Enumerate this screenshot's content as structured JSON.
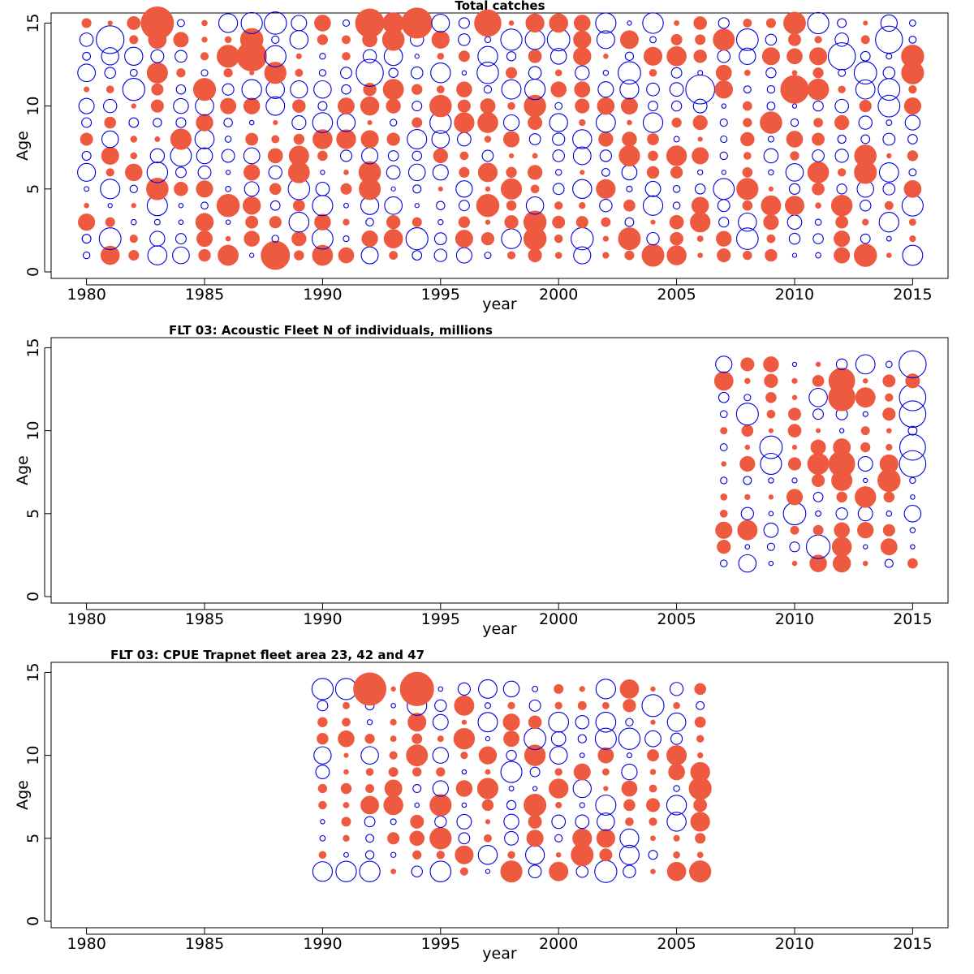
{
  "colors": {
    "positive": "#ee5a40",
    "negative": "#0000dd"
  },
  "chart_data": [
    {
      "type": "scatter",
      "subtype": "bubble-residuals",
      "title": "Total catches",
      "xlabel": "year",
      "ylabel": "Age",
      "xlim": [
        1978.5,
        2016.5
      ],
      "ylim": [
        0,
        16
      ],
      "xticks": [
        1980,
        1985,
        1990,
        1995,
        2000,
        2005,
        2010,
        2015
      ],
      "yticks": [
        0,
        5,
        10,
        15
      ],
      "years": [
        1980,
        2015
      ],
      "ages": [
        1,
        15
      ],
      "seed": 11,
      "overrides": [
        {
          "year": 1983,
          "age": 15,
          "v": 3.0
        },
        {
          "year": 1992,
          "age": 15,
          "v": 2.3
        },
        {
          "year": 1994,
          "age": 15,
          "v": 2.6
        },
        {
          "year": 1987,
          "age": 13,
          "v": 2.5
        },
        {
          "year": 1988,
          "age": 1,
          "v": 2.3
        },
        {
          "year": 1981,
          "age": 14,
          "v": -2.2
        },
        {
          "year": 2006,
          "age": 11,
          "v": -2.4
        },
        {
          "year": 2010,
          "age": 11,
          "v": 2.2
        },
        {
          "year": 2014,
          "age": 14,
          "v": -2.1
        },
        {
          "year": 1992,
          "age": 12,
          "v": -2.1
        },
        {
          "year": 2012,
          "age": 13,
          "v": -2.1
        },
        {
          "year": 1997,
          "age": 15,
          "v": 2.0
        }
      ]
    },
    {
      "type": "scatter",
      "subtype": "bubble-residuals",
      "title": "FLT 03: Acoustic Fleet   N of individuals, millions",
      "xlabel": "year",
      "ylabel": "Age",
      "xlim": [
        1978.5,
        2016.5
      ],
      "ylim": [
        0,
        16
      ],
      "xticks": [
        1980,
        1985,
        1990,
        1995,
        2000,
        2005,
        2010,
        2015
      ],
      "yticks": [
        0,
        5,
        10,
        15
      ],
      "years": [
        2007,
        2015
      ],
      "ages": [
        2,
        14
      ],
      "seed": 23,
      "overrides": [
        {
          "year": 2012,
          "age": 13,
          "v": 1.9
        },
        {
          "year": 2012,
          "age": 12,
          "v": 2.0
        },
        {
          "year": 2012,
          "age": 8,
          "v": 1.9
        },
        {
          "year": 2015,
          "age": 14,
          "v": -2.1
        },
        {
          "year": 2015,
          "age": 12,
          "v": -2.0
        },
        {
          "year": 2015,
          "age": 11,
          "v": -2.0
        },
        {
          "year": 2015,
          "age": 9,
          "v": -1.9
        },
        {
          "year": 2015,
          "age": 8,
          "v": -2.0
        },
        {
          "year": 2011,
          "age": 3,
          "v": -1.6
        }
      ]
    },
    {
      "type": "scatter",
      "subtype": "bubble-residuals",
      "title": "FLT 03: CPUE Trapnet fleet area 23, 42 and 47",
      "xlabel": "year",
      "ylabel": "Age",
      "xlim": [
        1978.5,
        2016.5
      ],
      "ylim": [
        0,
        16
      ],
      "xticks": [
        1980,
        1985,
        1990,
        1995,
        2000,
        2005,
        2010,
        2015
      ],
      "yticks": [
        0,
        5,
        10,
        15
      ],
      "years": [
        1990,
        2006
      ],
      "ages": [
        3,
        14
      ],
      "seed": 37,
      "overrides": [
        {
          "year": 1992,
          "age": 14,
          "v": 3.0
        },
        {
          "year": 1994,
          "age": 14,
          "v": 3.2
        },
        {
          "year": 1990,
          "age": 14,
          "v": -1.3
        },
        {
          "year": 1991,
          "age": 14,
          "v": -1.3
        },
        {
          "year": 1990,
          "age": 3,
          "v": -1.1
        },
        {
          "year": 1991,
          "age": 3,
          "v": -1.2
        },
        {
          "year": 1992,
          "age": 3,
          "v": -1.2
        },
        {
          "year": 2006,
          "age": 3,
          "v": 1.3
        },
        {
          "year": 2000,
          "age": 3,
          "v": 1.0
        }
      ]
    }
  ]
}
